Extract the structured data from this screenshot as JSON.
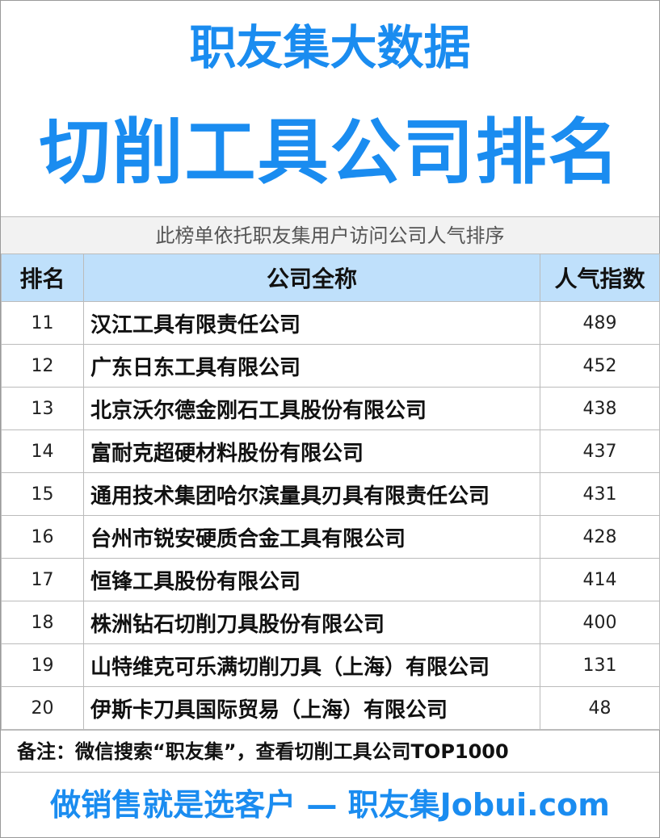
{
  "header": {
    "title": "职友集大数据",
    "subtitle": "切削工具公司排名",
    "description": "此榜单依托职友集用户访问公司人气排序"
  },
  "table": {
    "columns": [
      "排名",
      "公司全称",
      "人气指数"
    ],
    "rows": [
      [
        11,
        "汉江工具有限责任公司",
        489
      ],
      [
        12,
        "广东日东工具有限公司",
        452
      ],
      [
        13,
        "北京沃尔德金刚石工具股份有限公司",
        438
      ],
      [
        14,
        "富耐克超硬材料股份有限公司",
        437
      ],
      [
        15,
        "通用技术集团哈尔滨量具刃具有限责任公司",
        431
      ],
      [
        16,
        "台州市锐安硬质合金工具有限公司",
        428
      ],
      [
        17,
        "恒锋工具股份有限公司",
        414
      ],
      [
        18,
        "株洲钻石切削刀具股份有限公司",
        400
      ],
      [
        19,
        "山特维克可乐满切削刀具（上海）有限公司",
        131
      ],
      [
        20,
        "伊斯卡刀具国际贸易（上海）有限公司",
        48
      ]
    ]
  },
  "note": "备注：微信搜索“职友集”，查看切削工具公司TOP1000",
  "footer": "做销售就是选客户 — 职友集Jobui.com"
}
